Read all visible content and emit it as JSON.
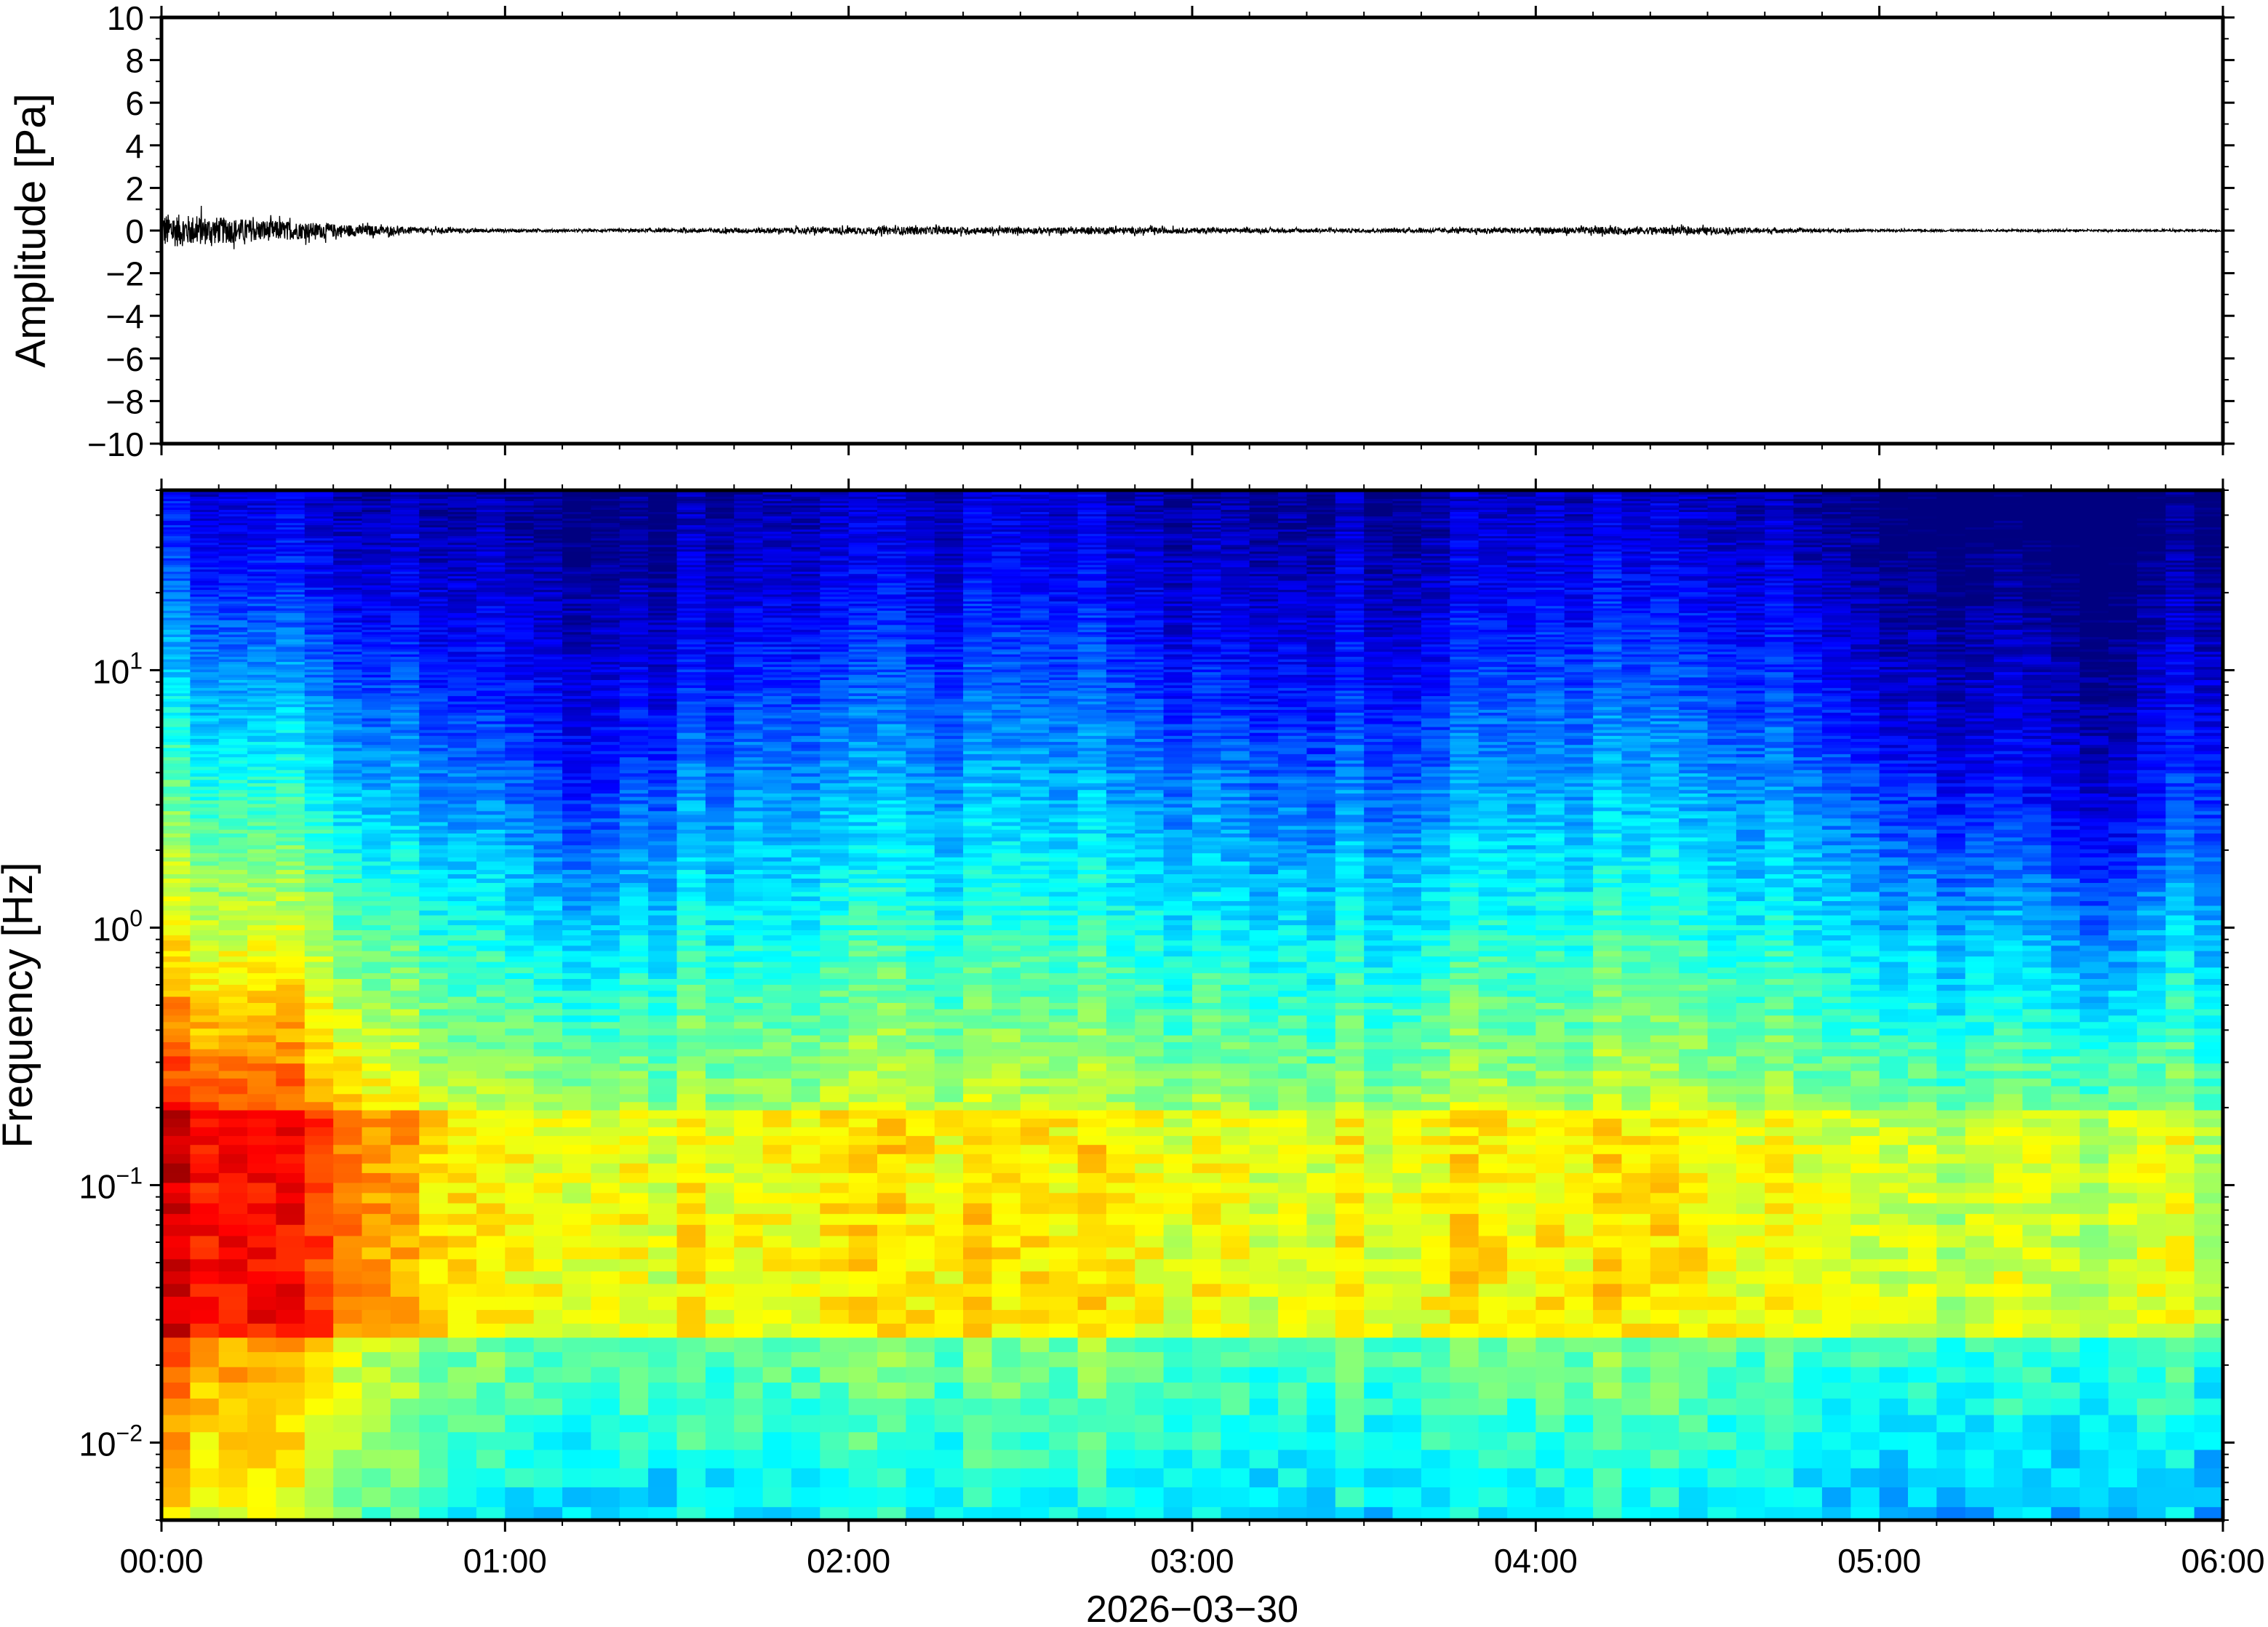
{
  "chart_data": [
    {
      "type": "line",
      "title": "",
      "ylabel": "Amplitude [Pa]",
      "xlabel": "",
      "ylim": [
        -10,
        10
      ],
      "yticks": [
        10,
        8,
        6,
        4,
        2,
        0,
        -2,
        -4,
        -6,
        -8,
        -10
      ],
      "ytick_labels": [
        "10",
        "8",
        "6",
        "4",
        "2",
        "0",
        "−2",
        "−4",
        "−6",
        "−8",
        "−10"
      ],
      "series": [
        {
          "x_hours": [
            0.0,
            0.25,
            0.5,
            0.75,
            1.0,
            1.25,
            1.5,
            1.75,
            2.0,
            2.25,
            2.5,
            2.75,
            3.0,
            3.25,
            3.5,
            3.75,
            4.0,
            4.25,
            4.5,
            4.75,
            5.0,
            5.25,
            5.5,
            5.75,
            6.0
          ],
          "envelope": [
            0.9,
            0.6,
            0.35,
            0.15,
            0.08,
            0.06,
            0.1,
            0.14,
            0.18,
            0.2,
            0.16,
            0.18,
            0.14,
            0.1,
            0.1,
            0.12,
            0.16,
            0.2,
            0.18,
            0.1,
            0.06,
            0.05,
            0.05,
            0.05,
            0.05
          ]
        }
      ]
    },
    {
      "type": "heatmap",
      "title": "",
      "ylabel": "Frequency [Hz]",
      "xlabel": "2026−03−30",
      "yscale": "log",
      "ylim": [
        0.005,
        50
      ],
      "yticks": [
        {
          "value": 10,
          "base": "10",
          "exp": "1"
        },
        {
          "value": 1,
          "base": "10",
          "exp": "0"
        },
        {
          "value": 0.1,
          "base": "10",
          "exp": "−1"
        },
        {
          "value": 0.01,
          "base": "10",
          "exp": "−2"
        }
      ],
      "xlim": [
        "00:00",
        "06:00"
      ],
      "xtick_labels": [
        "00:00",
        "01:00",
        "02:00",
        "03:00",
        "04:00",
        "05:00",
        "06:00"
      ],
      "colormap": "jet",
      "time_hours": [
        0.0,
        0.25,
        0.5,
        0.75,
        1.0,
        1.25,
        1.5,
        1.75,
        2.0,
        2.25,
        2.5,
        2.75,
        3.0,
        3.25,
        3.5,
        3.75,
        4.0,
        4.25,
        4.5,
        4.75,
        5.0,
        5.25,
        5.5,
        5.75,
        6.0
      ],
      "upper_cutoff_hz": [
        40,
        30,
        22,
        14,
        8,
        3,
        10,
        20,
        22,
        22,
        20,
        22,
        14,
        12,
        10,
        12,
        25,
        24,
        22,
        18,
        6,
        5,
        3,
        2,
        8
      ],
      "ambient_level": [
        0.88,
        0.85,
        0.78,
        0.65,
        0.58,
        0.55,
        0.6,
        0.62,
        0.63,
        0.63,
        0.6,
        0.62,
        0.6,
        0.58,
        0.58,
        0.6,
        0.62,
        0.62,
        0.62,
        0.6,
        0.57,
        0.56,
        0.55,
        0.55,
        0.55
      ]
    }
  ]
}
